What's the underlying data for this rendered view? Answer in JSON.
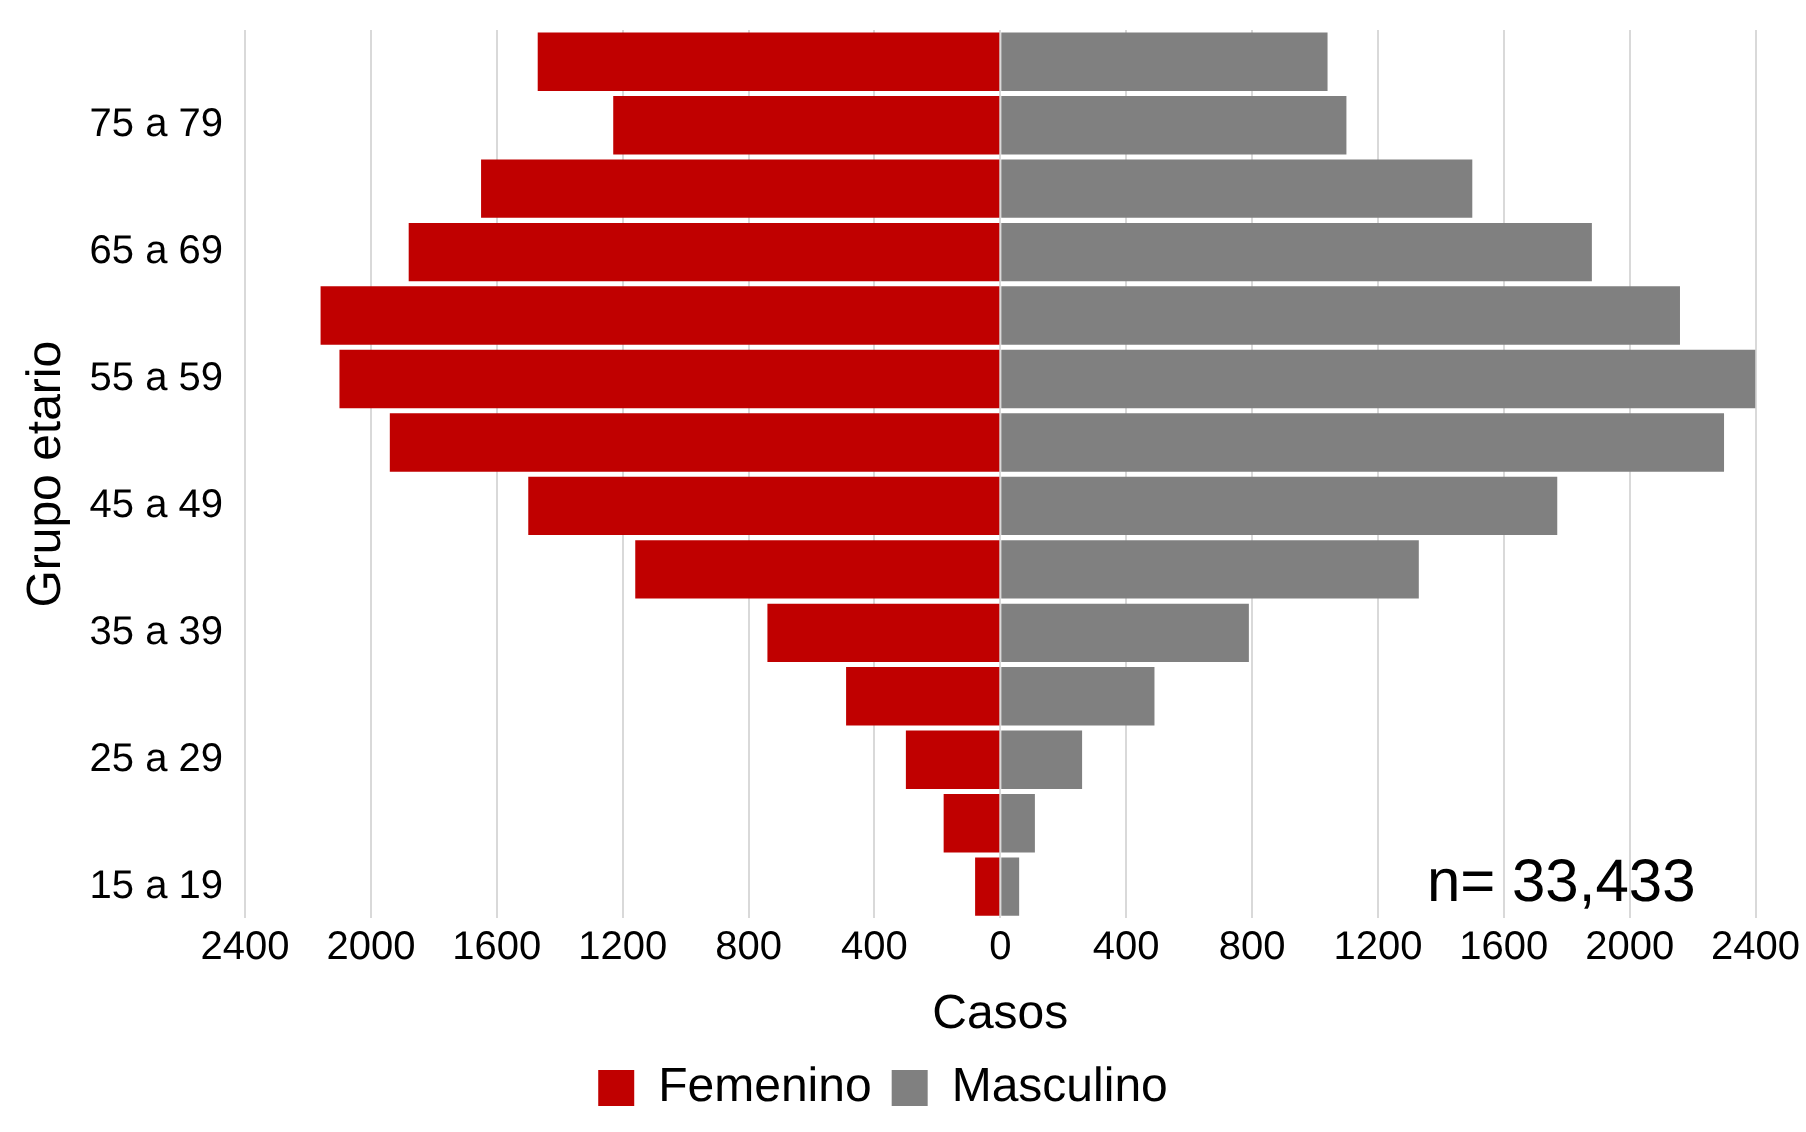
{
  "chart_data": {
    "type": "bar",
    "orientation": "horizontal",
    "xlabel": "Casos",
    "ylabel": "Grupo etario",
    "categories": [
      null,
      "75 a 79",
      null,
      "65 a 69",
      null,
      "55 a 59",
      null,
      "45 a 49",
      null,
      "35 a 39",
      null,
      "25 a 29",
      null,
      "15 a 19"
    ],
    "series": [
      {
        "name": "Femenino",
        "color": "#c00000",
        "values": [
          -1470,
          -1230,
          -1650,
          -1880,
          -2160,
          -2100,
          -1940,
          -1500,
          -1160,
          -740,
          -490,
          -300,
          -180,
          -80
        ]
      },
      {
        "name": "Masculino",
        "color": "#808080",
        "values": [
          1040,
          1100,
          1500,
          1880,
          2160,
          2400,
          2300,
          1770,
          1330,
          790,
          490,
          260,
          110,
          60
        ]
      }
    ],
    "xlim": [
      -2400,
      2400
    ],
    "xticks": [
      {
        "value": -2400,
        "label": "2400"
      },
      {
        "value": -2000,
        "label": "2000"
      },
      {
        "value": -1600,
        "label": "1600"
      },
      {
        "value": -1200,
        "label": "1200"
      },
      {
        "value": -800,
        "label": "800"
      },
      {
        "value": -400,
        "label": "400"
      },
      0,
      400,
      800,
      1200,
      1600,
      2000,
      2400
    ],
    "grid": "x",
    "stacked": true,
    "legend": "bottom",
    "annotations": [
      "n= 33,433"
    ]
  }
}
